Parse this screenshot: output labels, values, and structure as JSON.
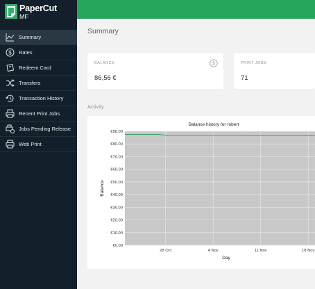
{
  "app": {
    "logo_text": "PaperCut",
    "logo_sub": "MF"
  },
  "colors": {
    "sidebar_bg": "#13202b",
    "topbar_green": "#25a65c",
    "plot_bg": "#c8c8c8",
    "line_green": "#2a9c63"
  },
  "sidebar": {
    "items": [
      {
        "label": "Summary",
        "icon": "line-chart-icon",
        "active": true
      },
      {
        "label": "Rates",
        "icon": "dollar-circle-icon",
        "active": false
      },
      {
        "label": "Redeem Card",
        "icon": "ticket-icon",
        "active": false
      },
      {
        "label": "Transfers",
        "icon": "shuffle-icon",
        "active": false
      },
      {
        "label": "Transaction History",
        "icon": "history-icon",
        "active": false
      },
      {
        "label": "Recent Print Jobs",
        "icon": "print-jobs-icon",
        "active": false
      },
      {
        "label": "Jobs Pending Release",
        "icon": "pending-release-icon",
        "active": false
      },
      {
        "label": "Web Print",
        "icon": "web-print-icon",
        "active": false
      }
    ]
  },
  "main": {
    "title": "Summary",
    "balance_card": {
      "label": "BALANCE",
      "value": "86,56 €",
      "icon": "dollar-circle-icon"
    },
    "print_jobs_card": {
      "label": "PRINT JOBS",
      "value": "71"
    },
    "activity_label": "Activity"
  },
  "chart_data": {
    "type": "line",
    "title": "Balance history for robert",
    "xlabel": "Day",
    "ylabel": "Balance",
    "x_ticks": [
      "28 Oct",
      "4 Nov",
      "11 Nov",
      "18 Nov"
    ],
    "y_ticks": [
      "€0.00",
      "€10.00",
      "€20.00",
      "€30.00",
      "€40.00",
      "€50.00",
      "€60.00",
      "€70.00",
      "€80.00",
      "€90.00"
    ],
    "ylim": [
      0,
      90
    ],
    "x_range": [
      "2016-10-22",
      "2016-11-19"
    ],
    "grid": true,
    "series": [
      {
        "x": [
          "2016-10-22",
          "2016-10-27",
          "2016-10-28",
          "2016-11-08",
          "2016-11-09",
          "2016-11-19"
        ],
        "values": [
          87.5,
          87.5,
          86.9,
          86.9,
          86.56,
          86.56
        ]
      }
    ]
  }
}
